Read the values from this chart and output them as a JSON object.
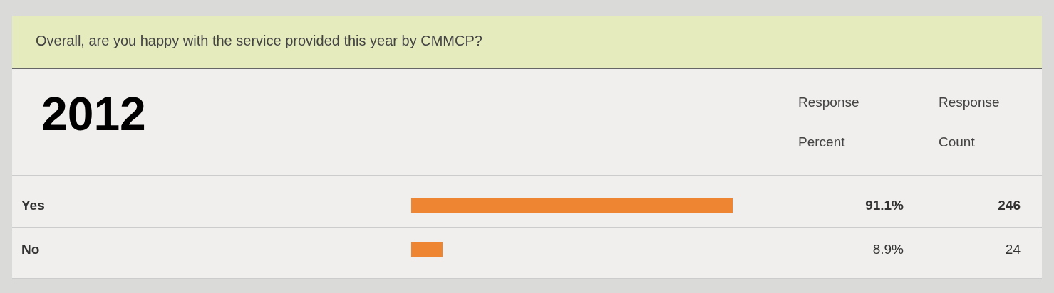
{
  "chart_data": {
    "type": "bar",
    "orientation": "horizontal",
    "title": "Overall, are you happy with the service provided this year by CMMCP?",
    "subtitle": "2012",
    "categories": [
      "Yes",
      "No"
    ],
    "values": [
      91.1,
      8.9
    ],
    "color": "#ee8532",
    "value_labels": [
      "91.1%",
      "8.9%"
    ],
    "annotations": [
      "Response Percent",
      "Response Count",
      "246",
      "24"
    ]
  }
}
